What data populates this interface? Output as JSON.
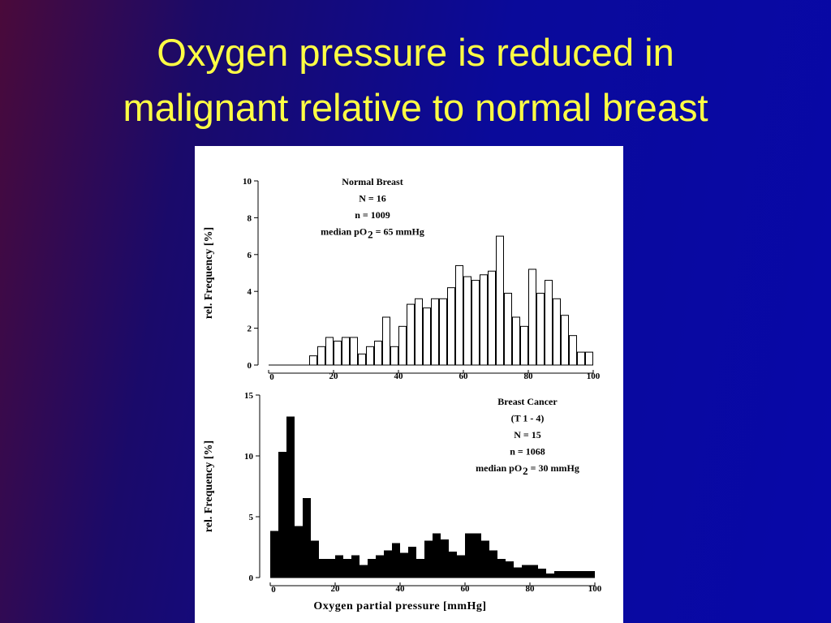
{
  "title": [
    "Oxygen pressure is reduced in",
    "malignant relative to normal breast"
  ],
  "chart_data": [
    {
      "type": "histogram",
      "color": "#ffffff",
      "edge_color": "#000000",
      "annotations": [
        "Normal Breast",
        "N = 16",
        "n = 1009"
      ],
      "median": {
        "text": "median  pO",
        "sub": "2",
        "rest": "= 65 mmHg"
      },
      "ylabel": "rel. Frequency [%]",
      "bins": [
        12.5,
        15,
        17.5,
        20,
        22.5,
        25,
        27.5,
        30,
        32.5,
        35,
        37.5,
        40,
        42.5,
        45,
        47.5,
        50,
        52.5,
        55,
        57.5,
        60,
        62.5,
        65,
        67.5,
        70,
        72.5,
        75,
        77.5,
        80,
        82.5,
        85,
        87.5,
        90,
        92.5,
        95,
        97.5,
        100
      ],
      "counts": [
        0.5,
        1,
        1.5,
        1.3,
        1.5,
        1.5,
        0.6,
        1,
        1.3,
        2.6,
        1,
        2.1,
        3.3,
        3.6,
        3.1,
        3.6,
        3.6,
        4.2,
        5.4,
        4.8,
        4.6,
        4.9,
        5.1,
        7.0,
        3.9,
        2.6,
        2.1,
        5.2,
        3.9,
        4.6,
        3.6,
        2.7,
        1.6,
        0.7,
        0.7
      ],
      "xlim": [
        0,
        100
      ],
      "xticks": [
        0,
        20,
        40,
        60,
        80,
        100
      ],
      "ylim": [
        0,
        10
      ],
      "yticks": [
        0,
        2,
        4,
        6,
        8,
        10
      ]
    },
    {
      "type": "histogram",
      "color": "#000000",
      "edge_color": "#000000",
      "annotations": [
        "Breast Cancer",
        "(T 1 - 4)",
        "N = 15",
        "n = 1068"
      ],
      "median": {
        "text": "median  pO",
        "sub": "2",
        "rest": "= 30 mmHg"
      },
      "ylabel": "rel. Frequency [%]",
      "xlabel": "Oxygen partial pressure [mmHg]",
      "bins": [
        0,
        2.5,
        5,
        7.5,
        10,
        12.5,
        15,
        17.5,
        20,
        22.5,
        25,
        27.5,
        30,
        32.5,
        35,
        37.5,
        40,
        42.5,
        45,
        47.5,
        50,
        52.5,
        55,
        57.5,
        60,
        62.5,
        65,
        67.5,
        70,
        72.5,
        75,
        77.5,
        80,
        82.5,
        85,
        87.5,
        90,
        92.5,
        95,
        97.5,
        100
      ],
      "counts": [
        3.8,
        10.3,
        13.2,
        4.2,
        6.5,
        3.0,
        1.5,
        1.5,
        1.8,
        1.5,
        1.8,
        1.0,
        1.5,
        1.8,
        2.2,
        2.8,
        2.0,
        2.5,
        1.5,
        3.0,
        3.6,
        3.1,
        2.1,
        1.8,
        3.6,
        3.6,
        3.0,
        2.2,
        1.5,
        1.3,
        0.8,
        1.0,
        1.0,
        0.7,
        0.3,
        0.5,
        0.5,
        0.5,
        0.5,
        0.5
      ],
      "xlim": [
        0,
        100
      ],
      "xticks": [
        0,
        20,
        40,
        60,
        80,
        100
      ],
      "ylim": [
        0,
        15
      ],
      "yticks": [
        0,
        5,
        10,
        15
      ]
    }
  ]
}
